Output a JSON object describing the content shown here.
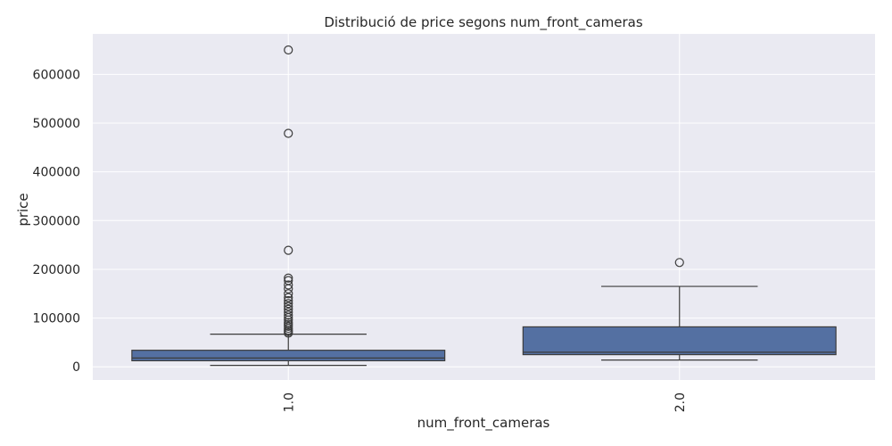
{
  "chart_data": {
    "type": "box",
    "title": "Distribució de price segons num_front_cameras",
    "xlabel": "num_front_cameras",
    "ylabel": "price",
    "categories": [
      "1.0",
      "2.0"
    ],
    "ylim": [
      -27000,
      683000
    ],
    "yticks": [
      0,
      100000,
      200000,
      300000,
      400000,
      500000,
      600000
    ],
    "grid": true,
    "box_color": "#5470a2",
    "edge_color": "#3c3c3c",
    "background_color": "#eaeaf2",
    "boxes": [
      {
        "category": "1.0",
        "whisker_low": 3000,
        "q1": 12500,
        "median": 18000,
        "q3": 34000,
        "whisker_high": 67000,
        "outliers": [
          650000,
          479000,
          239000,
          182000,
          177000,
          168000,
          160000,
          150000,
          142000,
          136000,
          130000,
          124000,
          118000,
          112000,
          106000,
          101000,
          96000,
          91000,
          87000,
          83000,
          79000,
          75000,
          72000,
          69000
        ]
      },
      {
        "category": "2.0",
        "whisker_low": 14000,
        "q1": 25000,
        "median": 30000,
        "q3": 82000,
        "whisker_high": 165000,
        "outliers": [
          214000
        ]
      }
    ]
  }
}
